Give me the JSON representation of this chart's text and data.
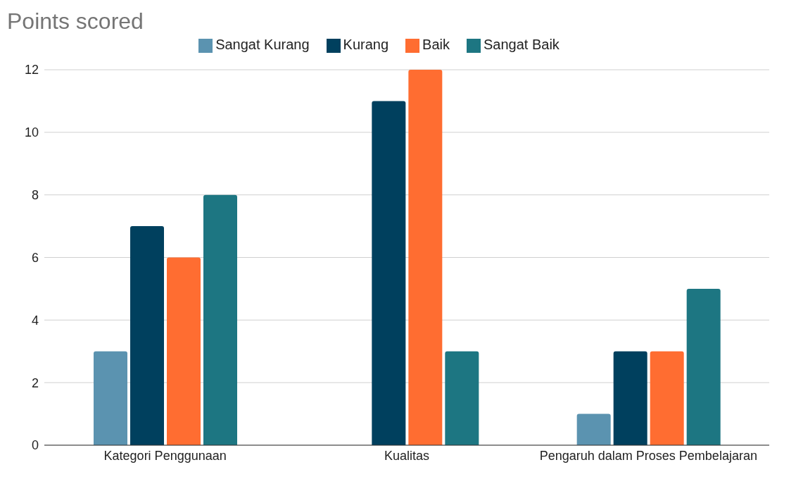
{
  "chart_data": {
    "type": "bar",
    "title": "Points scored",
    "categories": [
      "Kategori Penggunaan",
      "Kualitas",
      "Pengaruh dalam Proses Pembelajaran"
    ],
    "series": [
      {
        "name": "Sangat Kurang",
        "color": "#5b93b0",
        "values": [
          3,
          0,
          1
        ]
      },
      {
        "name": "Kurang",
        "color": "#00405e",
        "values": [
          7,
          11,
          3
        ]
      },
      {
        "name": "Baik",
        "color": "#ff6d31",
        "values": [
          6,
          12,
          3
        ]
      },
      {
        "name": "Sangat Baik",
        "color": "#1d7682",
        "values": [
          8,
          3,
          5
        ]
      }
    ],
    "ylim": [
      0,
      12
    ],
    "yticks": [
      0,
      2,
      4,
      6,
      8,
      10,
      12
    ],
    "grid": "y",
    "legend": "top"
  }
}
